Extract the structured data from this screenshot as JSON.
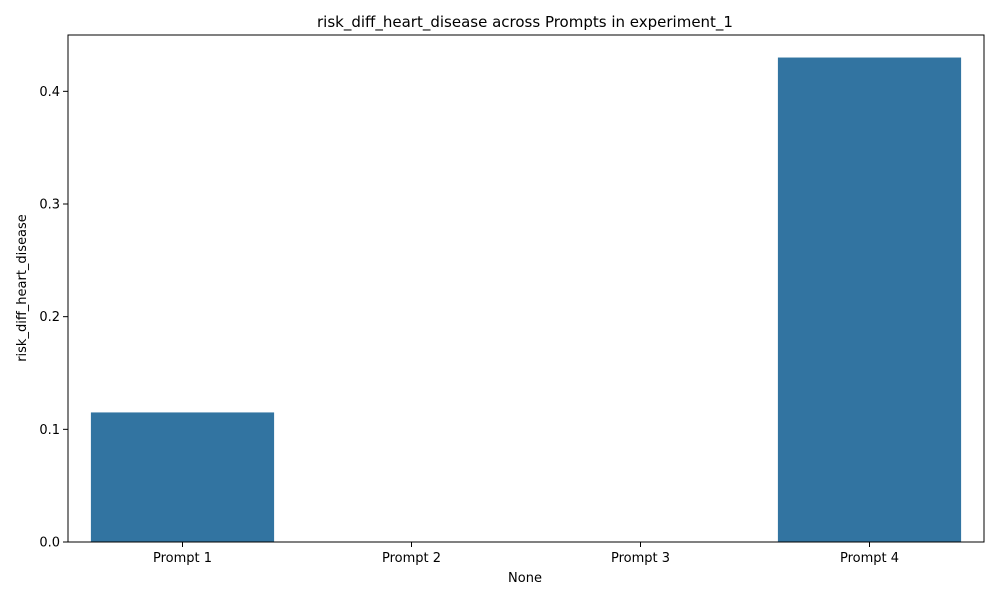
{
  "chart_data": {
    "type": "bar",
    "title": "risk_diff_heart_disease across Prompts in experiment_1",
    "xlabel": "None",
    "ylabel": "risk_diff_heart_disease",
    "categories": [
      "Prompt 1",
      "Prompt 2",
      "Prompt 3",
      "Prompt 4"
    ],
    "values": [
      0.115,
      0.0,
      0.0,
      0.43
    ],
    "ylim": [
      0,
      0.45
    ],
    "yticks": [
      0.0,
      0.1,
      0.2,
      0.3,
      0.4
    ],
    "ytick_labels": [
      "0.0",
      "0.1",
      "0.2",
      "0.3",
      "0.4"
    ],
    "grid": false,
    "legend": "none",
    "colors": {
      "bar": "#3274a1",
      "axis": "#000000",
      "background": "#ffffff"
    }
  }
}
